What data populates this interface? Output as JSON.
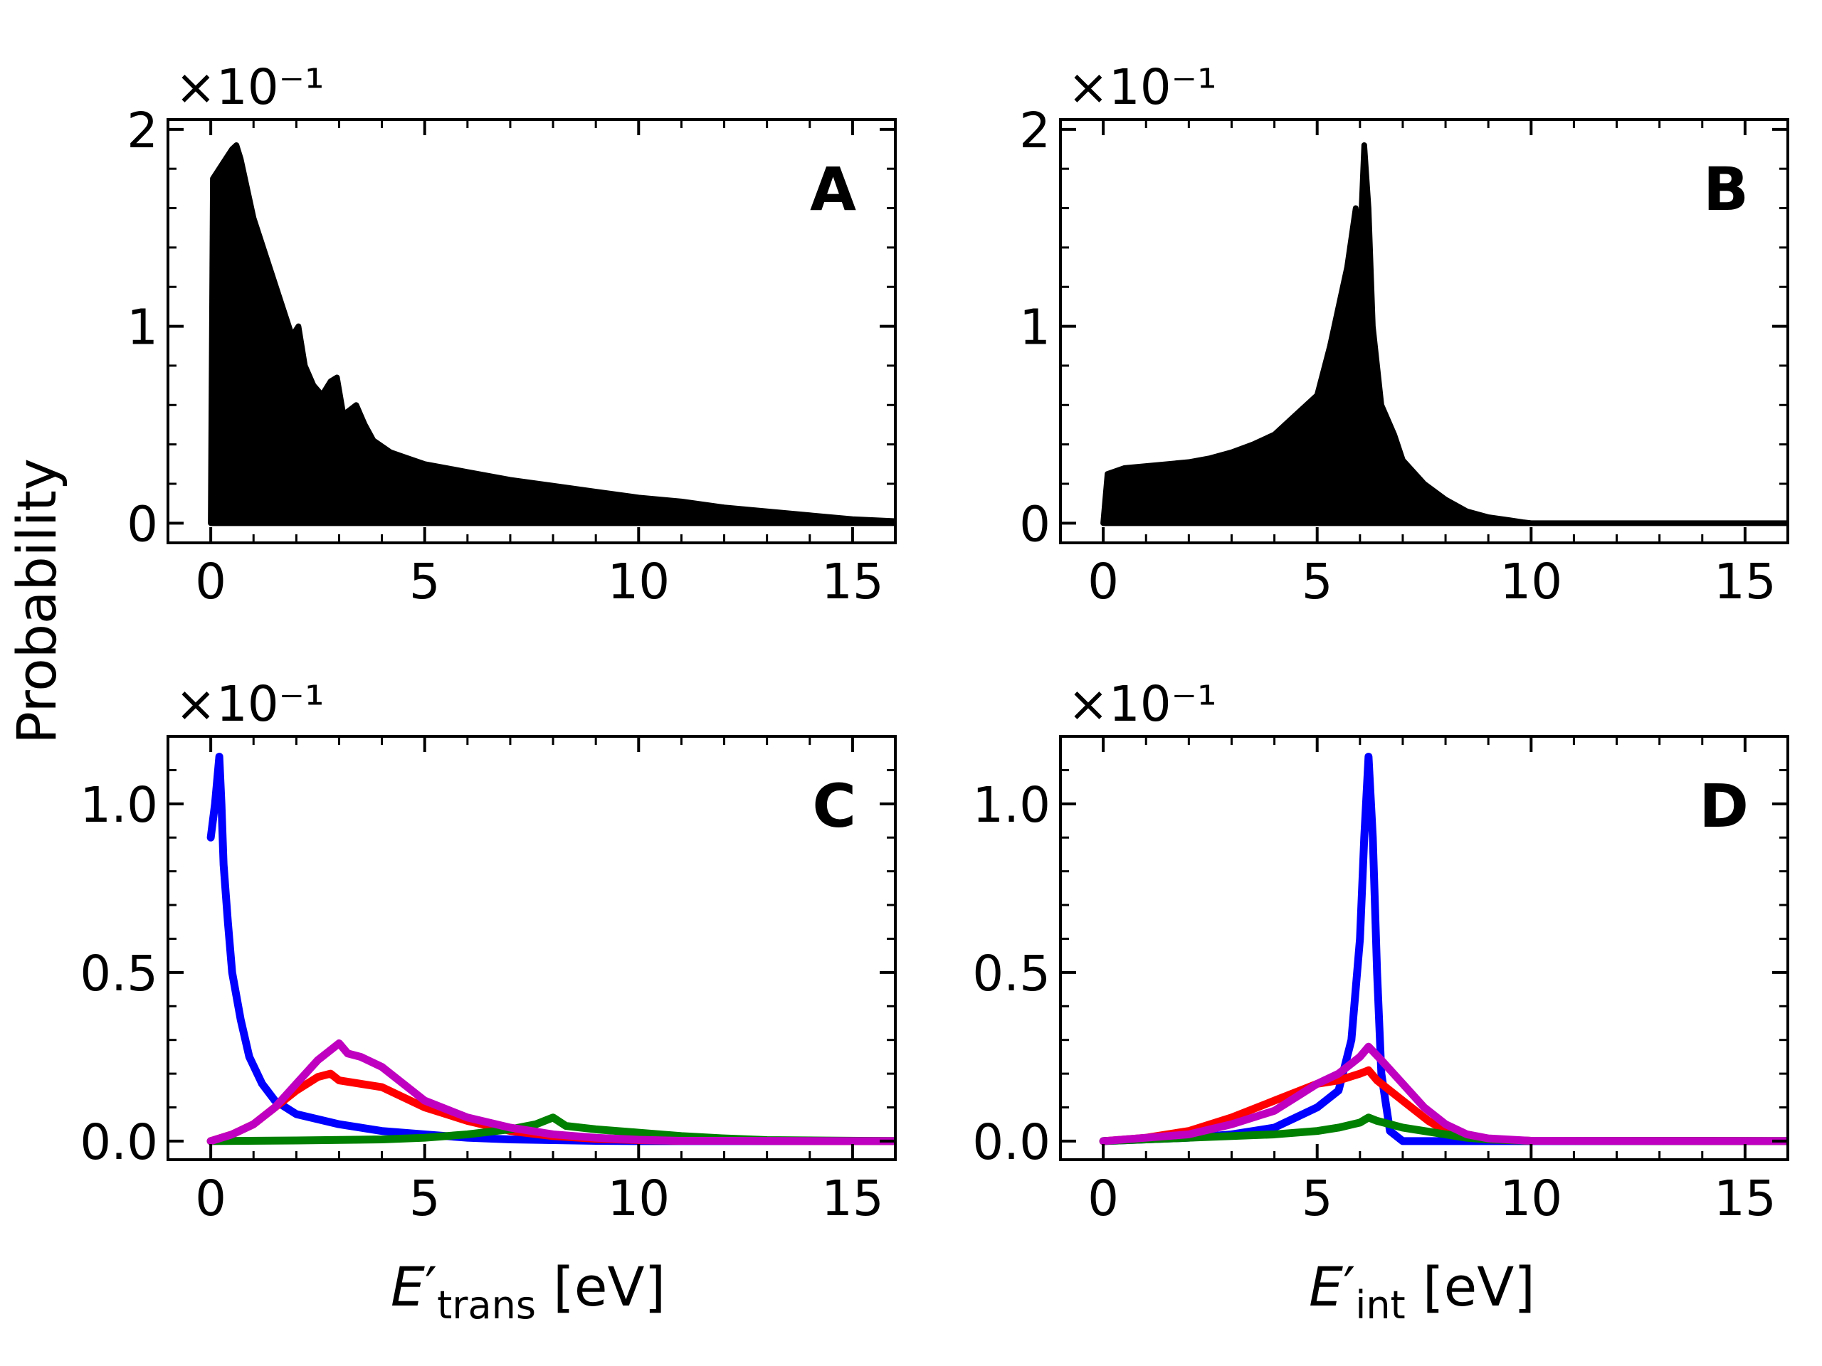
{
  "figure": {
    "ylabel": "Probability",
    "xlabel_left": {
      "main": "E",
      "prime": "′",
      "sub": "trans",
      "unit": " [eV]"
    },
    "xlabel_right": {
      "main": "E",
      "prime": "′",
      "sub": "int",
      "unit": " [eV]"
    }
  },
  "chart_data": [
    {
      "type": "area",
      "panel": "A",
      "multiplier": "×10⁻¹",
      "xlim": [
        -1,
        16
      ],
      "ylim": [
        -0.1,
        2.05
      ],
      "xticks": [
        0,
        5,
        10,
        15
      ],
      "xtick_labels": [
        "0",
        "5",
        "10",
        "15"
      ],
      "yticks": [
        0,
        1,
        2
      ],
      "ytick_labels": [
        "0",
        "1",
        "2"
      ],
      "color": "#000000",
      "x": [
        0,
        0.05,
        0.2,
        0.35,
        0.5,
        0.6,
        0.7,
        0.8,
        1.0,
        1.3,
        1.6,
        1.9,
        2.05,
        2.2,
        2.4,
        2.6,
        2.8,
        2.95,
        3.1,
        3.4,
        3.6,
        3.8,
        4.2,
        4.6,
        5,
        5.5,
        6,
        7,
        8,
        9,
        10,
        11,
        12,
        13,
        14,
        15,
        16
      ],
      "y": [
        0,
        1.75,
        1.8,
        1.85,
        1.9,
        1.92,
        1.85,
        1.75,
        1.55,
        1.35,
        1.15,
        0.95,
        1.0,
        0.8,
        0.7,
        0.65,
        0.72,
        0.74,
        0.55,
        0.6,
        0.5,
        0.42,
        0.36,
        0.33,
        0.3,
        0.28,
        0.26,
        0.22,
        0.19,
        0.16,
        0.13,
        0.11,
        0.08,
        0.06,
        0.04,
        0.02,
        0.01
      ]
    },
    {
      "type": "area",
      "panel": "B",
      "multiplier": "×10⁻¹",
      "xlim": [
        -1,
        16
      ],
      "ylim": [
        -0.1,
        2.05
      ],
      "xticks": [
        0,
        5,
        10,
        15
      ],
      "xtick_labels": [
        "0",
        "5",
        "10",
        "15"
      ],
      "yticks": [
        0,
        1,
        2
      ],
      "ytick_labels": [
        "0",
        "1",
        "2"
      ],
      "color": "#000000",
      "x": [
        0,
        0.1,
        0.5,
        1,
        1.5,
        2,
        2.5,
        3,
        3.5,
        4,
        4.5,
        5,
        5.3,
        5.5,
        5.7,
        5.8,
        5.9,
        6.0,
        6.1,
        6.2,
        6.3,
        6.5,
        6.8,
        7,
        7.5,
        8,
        8.5,
        9,
        9.5,
        9.8,
        10,
        16
      ],
      "y": [
        0,
        0.25,
        0.28,
        0.29,
        0.3,
        0.31,
        0.33,
        0.36,
        0.4,
        0.45,
        0.55,
        0.65,
        0.9,
        1.1,
        1.3,
        1.45,
        1.6,
        1.4,
        1.92,
        1.6,
        1.0,
        0.6,
        0.45,
        0.32,
        0.2,
        0.12,
        0.06,
        0.03,
        0.015,
        0.005,
        0,
        0
      ]
    },
    {
      "type": "line",
      "panel": "C",
      "multiplier": "×10⁻¹",
      "xlim": [
        -1,
        16
      ],
      "ylim": [
        -0.055,
        1.2
      ],
      "xticks": [
        0,
        5,
        10,
        15
      ],
      "xtick_labels": [
        "0",
        "5",
        "10",
        "15"
      ],
      "yticks": [
        0,
        0.5,
        1.0
      ],
      "ytick_labels": [
        "0.0",
        "0.5",
        "1.0"
      ],
      "series": [
        {
          "color": "#0000ff",
          "x": [
            0,
            0.1,
            0.2,
            0.25,
            0.3,
            0.4,
            0.5,
            0.7,
            0.9,
            1.2,
            1.5,
            2,
            3,
            4,
            5,
            6,
            7,
            8,
            9,
            10,
            16
          ],
          "y": [
            0.9,
            1.0,
            1.14,
            1.0,
            0.82,
            0.65,
            0.5,
            0.36,
            0.25,
            0.17,
            0.12,
            0.08,
            0.05,
            0.03,
            0.02,
            0.01,
            0.005,
            0.003,
            0.001,
            0,
            0
          ]
        },
        {
          "color": "#ff0000",
          "x": [
            0,
            0.5,
            1,
            1.5,
            2,
            2.5,
            2.8,
            3,
            3.5,
            4,
            4.5,
            5,
            6,
            7,
            8,
            9,
            10,
            11,
            16
          ],
          "y": [
            0,
            0.02,
            0.05,
            0.1,
            0.15,
            0.19,
            0.2,
            0.18,
            0.17,
            0.16,
            0.13,
            0.1,
            0.06,
            0.03,
            0.015,
            0.007,
            0.003,
            0.001,
            0
          ]
        },
        {
          "color": "#008000",
          "x": [
            0,
            2,
            4,
            5,
            6,
            7,
            7.6,
            8,
            8.3,
            9,
            10,
            11,
            12,
            13,
            16
          ],
          "y": [
            0,
            0.002,
            0.005,
            0.01,
            0.02,
            0.035,
            0.05,
            0.07,
            0.045,
            0.035,
            0.025,
            0.015,
            0.008,
            0.003,
            0
          ]
        },
        {
          "color": "#c000c0",
          "x": [
            0,
            0.5,
            1,
            1.5,
            2,
            2.5,
            2.8,
            3,
            3.2,
            3.5,
            4,
            4.5,
            5,
            6,
            7,
            8,
            9,
            10,
            11,
            16
          ],
          "y": [
            0,
            0.02,
            0.05,
            0.1,
            0.17,
            0.24,
            0.27,
            0.29,
            0.26,
            0.25,
            0.22,
            0.17,
            0.12,
            0.07,
            0.04,
            0.02,
            0.01,
            0.004,
            0.001,
            0
          ]
        }
      ]
    },
    {
      "type": "line",
      "panel": "D",
      "multiplier": "×10⁻¹",
      "xlim": [
        -1,
        16
      ],
      "ylim": [
        -0.055,
        1.2
      ],
      "xticks": [
        0,
        5,
        10,
        15
      ],
      "xtick_labels": [
        "0",
        "5",
        "10",
        "15"
      ],
      "yticks": [
        0,
        0.5,
        1.0
      ],
      "ytick_labels": [
        "0.0",
        "0.5",
        "1.0"
      ],
      "series": [
        {
          "color": "#0000ff",
          "x": [
            0,
            1,
            2,
            3,
            4,
            4.5,
            5,
            5.5,
            5.8,
            6.0,
            6.1,
            6.2,
            6.3,
            6.4,
            6.5,
            6.7,
            7,
            16
          ],
          "y": [
            0,
            0.005,
            0.01,
            0.02,
            0.04,
            0.07,
            0.1,
            0.15,
            0.3,
            0.6,
            0.9,
            1.14,
            0.9,
            0.5,
            0.2,
            0.03,
            0,
            0
          ]
        },
        {
          "color": "#ff0000",
          "x": [
            0,
            1,
            2,
            3,
            4,
            5,
            5.5,
            6,
            6.2,
            6.4,
            6.8,
            7.2,
            7.6,
            8,
            8.5,
            9,
            10,
            16
          ],
          "y": [
            0,
            0.01,
            0.03,
            0.07,
            0.12,
            0.17,
            0.18,
            0.2,
            0.21,
            0.18,
            0.14,
            0.1,
            0.06,
            0.03,
            0.015,
            0.005,
            0.001,
            0
          ]
        },
        {
          "color": "#008000",
          "x": [
            0,
            1,
            2,
            3,
            4,
            5,
            5.5,
            6,
            6.2,
            6.4,
            7,
            7.5,
            8,
            8.5,
            9,
            10,
            16
          ],
          "y": [
            0,
            0.005,
            0.01,
            0.015,
            0.02,
            0.03,
            0.04,
            0.055,
            0.07,
            0.06,
            0.04,
            0.03,
            0.02,
            0.01,
            0.005,
            0.001,
            0
          ]
        },
        {
          "color": "#c000c0",
          "x": [
            0,
            1,
            2,
            3,
            4,
            4.5,
            5,
            5.5,
            6,
            6.2,
            6.5,
            7,
            7.5,
            8,
            8.5,
            9,
            10,
            16
          ],
          "y": [
            0,
            0.01,
            0.02,
            0.05,
            0.09,
            0.13,
            0.17,
            0.2,
            0.25,
            0.28,
            0.24,
            0.17,
            0.1,
            0.05,
            0.02,
            0.008,
            0.001,
            0
          ]
        }
      ]
    }
  ]
}
